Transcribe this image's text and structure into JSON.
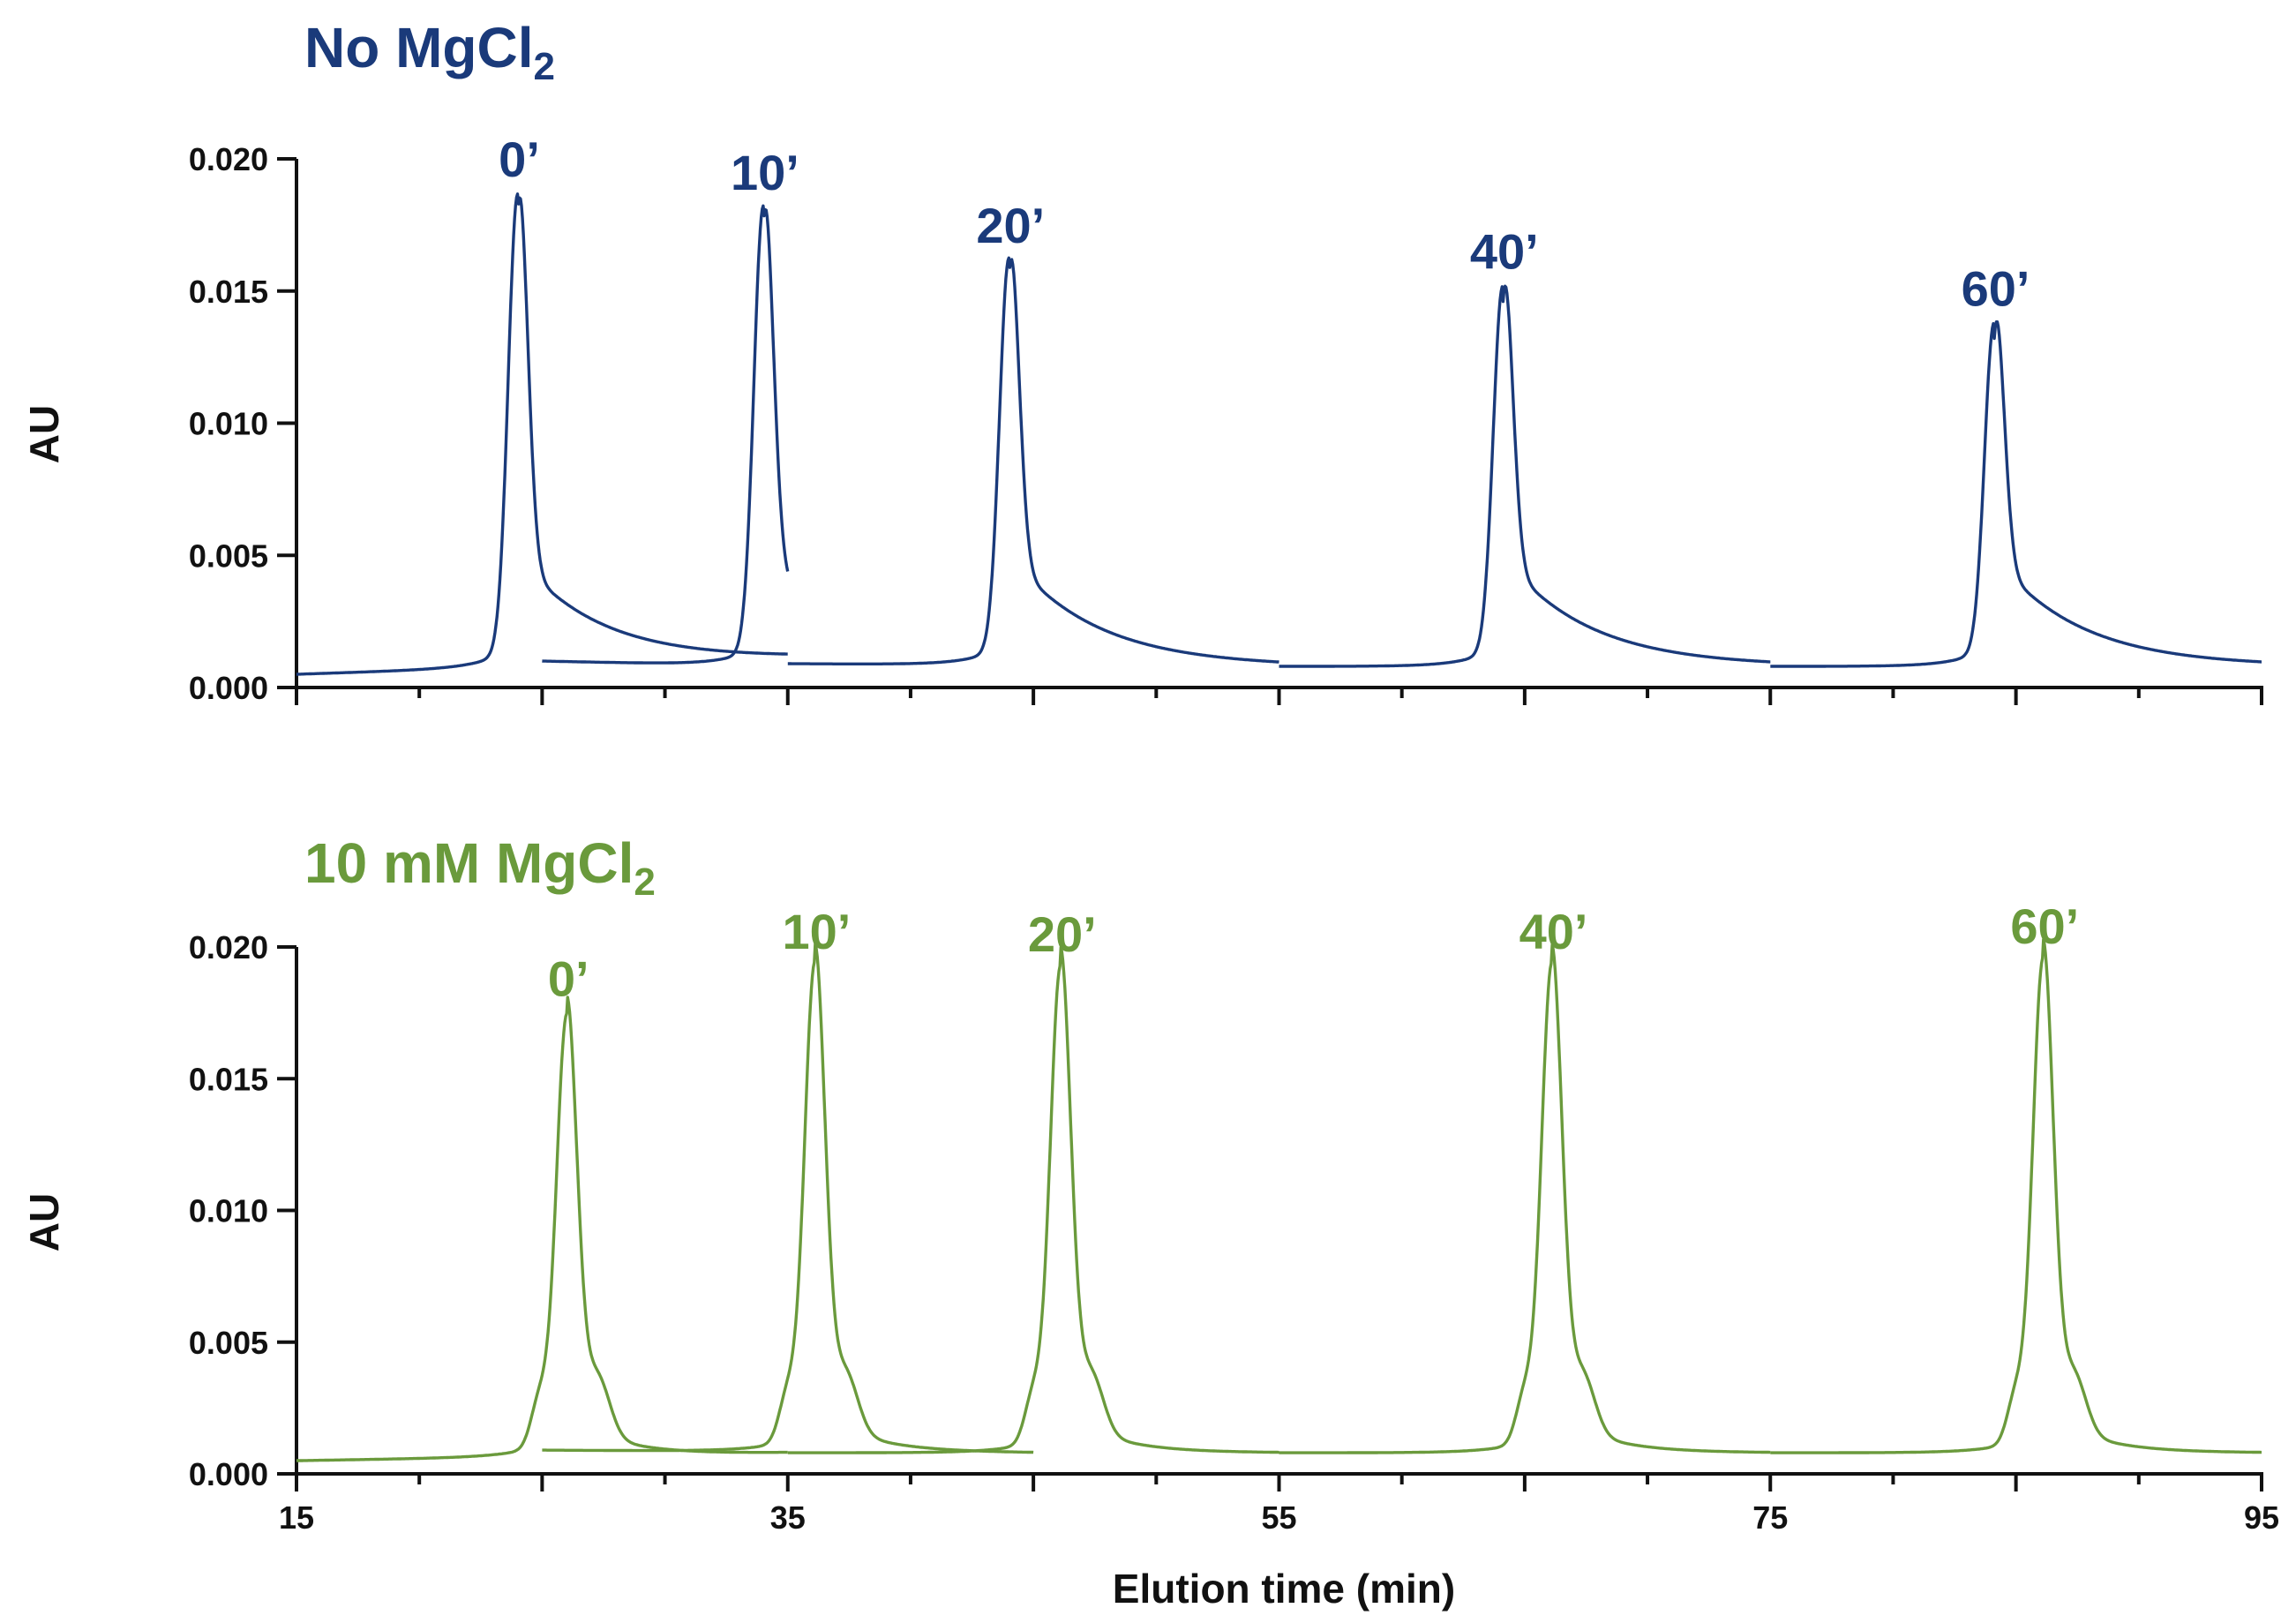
{
  "chart_data": {
    "type": "line",
    "xlabel": "Elution time (min)",
    "xlim": [
      15,
      95
    ],
    "x_major_ticks": [
      "15",
      "35",
      "55",
      "75",
      "95"
    ],
    "colors": {
      "no_mg": "#1a3a7a",
      "mg": "#6a9a3c"
    },
    "panels": [
      {
        "title": "No MgCl",
        "title_subscript": "2",
        "ylabel": "AU",
        "ylim": [
          0,
          0.02
        ],
        "y_ticks": [
          "0.000",
          "0.005",
          "0.010",
          "0.015",
          "0.020"
        ],
        "series": [
          {
            "name": "0’",
            "start": 15,
            "end": 35,
            "baseline_start": 0.0005,
            "baseline_end": 0.0011,
            "peak_x": 24.0,
            "peak_y": 0.0182,
            "shoulder": false
          },
          {
            "name": "10’",
            "start": 25,
            "end": 35,
            "baseline_start": 0.001,
            "baseline_end": 0.0008,
            "peak_x": 34.0,
            "peak_y": 0.0177,
            "shoulder": false
          },
          {
            "name": "20’",
            "start": 35,
            "end": 55,
            "baseline_start": 0.0009,
            "baseline_end": 0.0008,
            "peak_x": 44.0,
            "peak_y": 0.0157,
            "shoulder": false
          },
          {
            "name": "40’",
            "start": 55,
            "end": 75,
            "baseline_start": 0.0008,
            "baseline_end": 0.0008,
            "peak_x": 64.1,
            "peak_y": 0.0147,
            "shoulder": false
          },
          {
            "name": "60’",
            "start": 75,
            "end": 95,
            "baseline_start": 0.0008,
            "baseline_end": 0.0008,
            "peak_x": 84.1,
            "peak_y": 0.0133,
            "shoulder": false
          }
        ]
      },
      {
        "title": "10 mM MgCl",
        "title_subscript": "2",
        "ylabel": "AU",
        "ylim": [
          0,
          0.02
        ],
        "y_ticks": [
          "0.000",
          "0.005",
          "0.010",
          "0.015",
          "0.020"
        ],
        "series": [
          {
            "name": "0’",
            "start": 15,
            "end": 35,
            "baseline_start": 0.0005,
            "baseline_end": 0.0008,
            "peak_x": 26.0,
            "peak_y": 0.017,
            "shoulder": true
          },
          {
            "name": "10’",
            "start": 25,
            "end": 45,
            "baseline_start": 0.0009,
            "baseline_end": 0.0008,
            "peak_x": 36.1,
            "peak_y": 0.0188,
            "shoulder": true
          },
          {
            "name": "20’",
            "start": 35,
            "end": 55,
            "baseline_start": 0.0008,
            "baseline_end": 0.0008,
            "peak_x": 46.1,
            "peak_y": 0.0187,
            "shoulder": true
          },
          {
            "name": "40’",
            "start": 55,
            "end": 75,
            "baseline_start": 0.0008,
            "baseline_end": 0.0008,
            "peak_x": 66.1,
            "peak_y": 0.0188,
            "shoulder": true
          },
          {
            "name": "60’",
            "start": 75,
            "end": 95,
            "baseline_start": 0.0008,
            "baseline_end": 0.0008,
            "peak_x": 86.1,
            "peak_y": 0.019,
            "shoulder": true
          }
        ]
      }
    ]
  }
}
